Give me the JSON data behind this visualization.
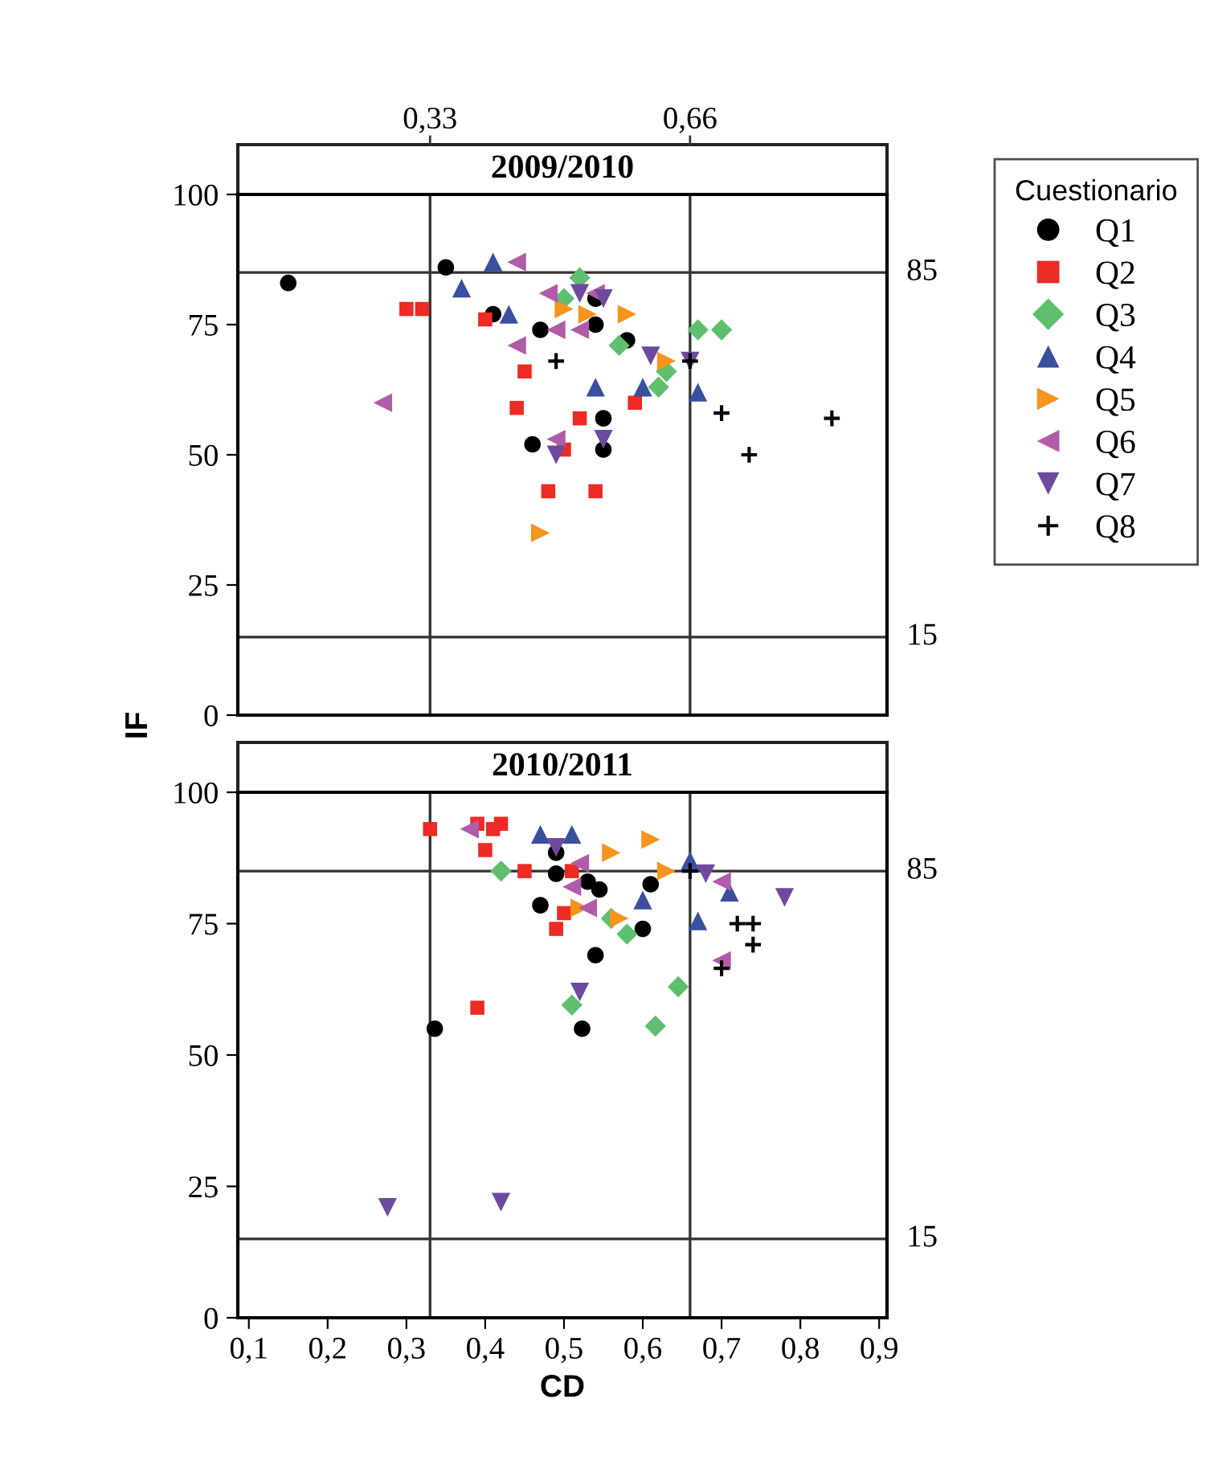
{
  "chart_data": [
    {
      "type": "scatter",
      "title": "2009/2010",
      "ylabel": "IF",
      "legend_title": "Cuestionario",
      "legend": "right",
      "grid": false,
      "tick_labels": "y",
      "xlim": [
        0.086,
        0.91
      ],
      "ylim": [
        0,
        100
      ],
      "yticks": [
        0,
        25,
        50,
        75,
        100
      ],
      "ref_lines": [
        {
          "axis": "x",
          "value": 0.33,
          "label": "0,33"
        },
        {
          "axis": "x",
          "value": 0.66,
          "label": "0,66"
        },
        {
          "axis": "y",
          "value": 85,
          "label": "85"
        },
        {
          "axis": "y",
          "value": 15,
          "label": "15"
        }
      ],
      "series": [
        {
          "name": "Q1",
          "color": "#000000",
          "marker": "circle",
          "x": [
            0.15,
            0.35,
            0.41,
            0.47,
            0.54,
            0.54,
            0.58,
            0.55,
            0.46,
            0.55
          ],
          "values": [
            83,
            86,
            77,
            74,
            75,
            80,
            72,
            57,
            52,
            51
          ]
        },
        {
          "name": "Q2",
          "color": "#ee2a24",
          "marker": "square",
          "x": [
            0.3,
            0.32,
            0.4,
            0.45,
            0.44,
            0.52,
            0.59,
            0.5,
            0.48,
            0.54
          ],
          "values": [
            78,
            78,
            76,
            66,
            59,
            57,
            60,
            51,
            43,
            43
          ]
        },
        {
          "name": "Q3",
          "color": "#5fbf6f",
          "marker": "diamond",
          "x": [
            0.52,
            0.5,
            0.57,
            0.63,
            0.62,
            0.67,
            0.7
          ],
          "values": [
            84,
            80,
            71,
            66,
            63,
            74,
            74
          ]
        },
        {
          "name": "Q4",
          "color": "#3a4fa0",
          "marker": "triangle",
          "x": [
            0.41,
            0.37,
            0.43,
            0.54,
            0.6,
            0.67
          ],
          "values": [
            87,
            82,
            77,
            63,
            63,
            62
          ]
        },
        {
          "name": "Q5",
          "color": "#f7941d",
          "marker": "triangle-right",
          "x": [
            0.5,
            0.53,
            0.58,
            0.63,
            0.47
          ],
          "values": [
            78,
            77,
            77,
            68,
            35
          ]
        },
        {
          "name": "Q6",
          "color": "#b05ca8",
          "marker": "triangle-left",
          "x": [
            0.44,
            0.48,
            0.54,
            0.49,
            0.52,
            0.44,
            0.27,
            0.49
          ],
          "values": [
            87,
            81,
            81,
            74,
            74,
            71,
            60,
            53
          ]
        },
        {
          "name": "Q7",
          "color": "#6e4a9e",
          "marker": "triangle-down",
          "x": [
            0.52,
            0.55,
            0.61,
            0.66,
            0.55,
            0.49
          ],
          "values": [
            81,
            80,
            69,
            68,
            53,
            50
          ]
        },
        {
          "name": "Q8",
          "color": "#000000",
          "marker": "cross",
          "x": [
            0.49,
            0.66,
            0.7,
            0.84,
            0.735
          ],
          "values": [
            68,
            68,
            58,
            57,
            50
          ]
        }
      ]
    },
    {
      "type": "scatter",
      "title": "2010/2011",
      "xlabel": "CD",
      "legend": false,
      "grid": false,
      "xlim": [
        0.086,
        0.91
      ],
      "ylim": [
        0,
        100
      ],
      "xticks": [
        {
          "value": 0.1,
          "label": "0,1"
        },
        {
          "value": 0.2,
          "label": "0,2"
        },
        {
          "value": 0.3,
          "label": "0,3"
        },
        {
          "value": 0.4,
          "label": "0,4"
        },
        {
          "value": 0.5,
          "label": "0,5"
        },
        {
          "value": 0.6,
          "label": "0,6"
        },
        {
          "value": 0.7,
          "label": "0,7"
        },
        {
          "value": 0.8,
          "label": "0,8"
        },
        {
          "value": 0.9,
          "label": "0,9"
        }
      ],
      "yticks": [
        0,
        25,
        50,
        75,
        100
      ],
      "ref_lines": [
        {
          "axis": "x",
          "value": 0.33
        },
        {
          "axis": "x",
          "value": 0.66
        },
        {
          "axis": "y",
          "value": 85,
          "label": "85"
        },
        {
          "axis": "y",
          "value": 15,
          "label": "15"
        }
      ],
      "series": [
        {
          "color": "#000000",
          "marker": "circle",
          "x": [
            0.49,
            0.49,
            0.545,
            0.53,
            0.61,
            0.47,
            0.6,
            0.54,
            0.336,
            0.523
          ],
          "values": [
            88.5,
            84.5,
            81.5,
            83,
            82.5,
            78.5,
            74,
            69,
            55,
            55
          ]
        },
        {
          "color": "#ee2a24",
          "marker": "square",
          "x": [
            0.33,
            0.39,
            0.41,
            0.42,
            0.4,
            0.45,
            0.51,
            0.5,
            0.49,
            0.39
          ],
          "values": [
            93,
            94,
            93,
            94,
            89,
            85,
            85,
            77,
            74,
            59
          ]
        },
        {
          "color": "#5fbf6f",
          "marker": "diamond",
          "x": [
            0.42,
            0.56,
            0.58,
            0.645,
            0.51,
            0.616
          ],
          "values": [
            85,
            76,
            73,
            63,
            59.5,
            55.5
          ]
        },
        {
          "color": "#3a4fa0",
          "marker": "triangle",
          "x": [
            0.47,
            0.51,
            0.66,
            0.6,
            0.71,
            0.67
          ],
          "values": [
            92,
            92,
            87,
            79.5,
            81,
            75.5
          ]
        },
        {
          "color": "#f7941d",
          "marker": "triangle-right",
          "x": [
            0.61,
            0.56,
            0.63,
            0.52,
            0.57
          ],
          "values": [
            91,
            88.5,
            85,
            78,
            76
          ]
        },
        {
          "color": "#b05ca8",
          "marker": "triangle-left",
          "x": [
            0.38,
            0.52,
            0.51,
            0.53,
            0.7,
            0.7
          ],
          "values": [
            93,
            86.5,
            82,
            78,
            83,
            68
          ]
        },
        {
          "color": "#6e4a9e",
          "marker": "triangle-down",
          "x": [
            0.49,
            0.68,
            0.78,
            0.52,
            0.276,
            0.42
          ],
          "values": [
            89.5,
            84.5,
            80,
            62,
            21,
            22
          ]
        },
        {
          "color": "#000000",
          "marker": "cross",
          "x": [
            0.66,
            0.72,
            0.74,
            0.74,
            0.7
          ],
          "values": [
            85,
            75,
            75,
            71,
            66.5
          ]
        }
      ]
    }
  ]
}
